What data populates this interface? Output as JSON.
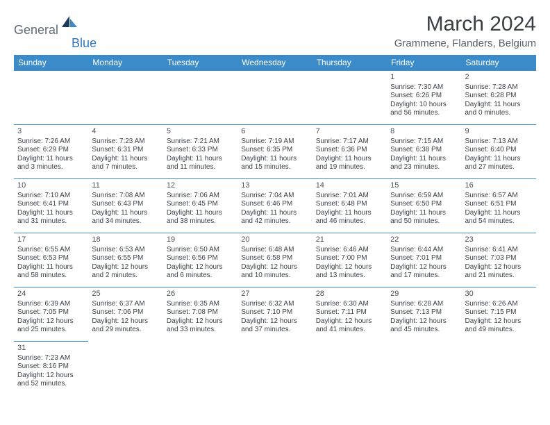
{
  "logo": {
    "text1": "General",
    "text2": "Blue"
  },
  "title": "March 2024",
  "location": "Grammene, Flanders, Belgium",
  "headers": [
    "Sunday",
    "Monday",
    "Tuesday",
    "Wednesday",
    "Thursday",
    "Friday",
    "Saturday"
  ],
  "colors": {
    "header_bg": "#3b8bc8",
    "header_text": "#ffffff",
    "border": "#3b8bc8",
    "logo_gray": "#5f6b76",
    "logo_blue": "#2f77bb",
    "shape_dark": "#1b3a5c",
    "shape_light": "#3b8bc8"
  },
  "weeks": [
    [
      null,
      null,
      null,
      null,
      null,
      {
        "n": "1",
        "sr": "Sunrise: 7:30 AM",
        "ss": "Sunset: 6:26 PM",
        "d1": "Daylight: 10 hours",
        "d2": "and 56 minutes."
      },
      {
        "n": "2",
        "sr": "Sunrise: 7:28 AM",
        "ss": "Sunset: 6:28 PM",
        "d1": "Daylight: 11 hours",
        "d2": "and 0 minutes."
      }
    ],
    [
      {
        "n": "3",
        "sr": "Sunrise: 7:26 AM",
        "ss": "Sunset: 6:29 PM",
        "d1": "Daylight: 11 hours",
        "d2": "and 3 minutes."
      },
      {
        "n": "4",
        "sr": "Sunrise: 7:23 AM",
        "ss": "Sunset: 6:31 PM",
        "d1": "Daylight: 11 hours",
        "d2": "and 7 minutes."
      },
      {
        "n": "5",
        "sr": "Sunrise: 7:21 AM",
        "ss": "Sunset: 6:33 PM",
        "d1": "Daylight: 11 hours",
        "d2": "and 11 minutes."
      },
      {
        "n": "6",
        "sr": "Sunrise: 7:19 AM",
        "ss": "Sunset: 6:35 PM",
        "d1": "Daylight: 11 hours",
        "d2": "and 15 minutes."
      },
      {
        "n": "7",
        "sr": "Sunrise: 7:17 AM",
        "ss": "Sunset: 6:36 PM",
        "d1": "Daylight: 11 hours",
        "d2": "and 19 minutes."
      },
      {
        "n": "8",
        "sr": "Sunrise: 7:15 AM",
        "ss": "Sunset: 6:38 PM",
        "d1": "Daylight: 11 hours",
        "d2": "and 23 minutes."
      },
      {
        "n": "9",
        "sr": "Sunrise: 7:13 AM",
        "ss": "Sunset: 6:40 PM",
        "d1": "Daylight: 11 hours",
        "d2": "and 27 minutes."
      }
    ],
    [
      {
        "n": "10",
        "sr": "Sunrise: 7:10 AM",
        "ss": "Sunset: 6:41 PM",
        "d1": "Daylight: 11 hours",
        "d2": "and 31 minutes."
      },
      {
        "n": "11",
        "sr": "Sunrise: 7:08 AM",
        "ss": "Sunset: 6:43 PM",
        "d1": "Daylight: 11 hours",
        "d2": "and 34 minutes."
      },
      {
        "n": "12",
        "sr": "Sunrise: 7:06 AM",
        "ss": "Sunset: 6:45 PM",
        "d1": "Daylight: 11 hours",
        "d2": "and 38 minutes."
      },
      {
        "n": "13",
        "sr": "Sunrise: 7:04 AM",
        "ss": "Sunset: 6:46 PM",
        "d1": "Daylight: 11 hours",
        "d2": "and 42 minutes."
      },
      {
        "n": "14",
        "sr": "Sunrise: 7:01 AM",
        "ss": "Sunset: 6:48 PM",
        "d1": "Daylight: 11 hours",
        "d2": "and 46 minutes."
      },
      {
        "n": "15",
        "sr": "Sunrise: 6:59 AM",
        "ss": "Sunset: 6:50 PM",
        "d1": "Daylight: 11 hours",
        "d2": "and 50 minutes."
      },
      {
        "n": "16",
        "sr": "Sunrise: 6:57 AM",
        "ss": "Sunset: 6:51 PM",
        "d1": "Daylight: 11 hours",
        "d2": "and 54 minutes."
      }
    ],
    [
      {
        "n": "17",
        "sr": "Sunrise: 6:55 AM",
        "ss": "Sunset: 6:53 PM",
        "d1": "Daylight: 11 hours",
        "d2": "and 58 minutes."
      },
      {
        "n": "18",
        "sr": "Sunrise: 6:53 AM",
        "ss": "Sunset: 6:55 PM",
        "d1": "Daylight: 12 hours",
        "d2": "and 2 minutes."
      },
      {
        "n": "19",
        "sr": "Sunrise: 6:50 AM",
        "ss": "Sunset: 6:56 PM",
        "d1": "Daylight: 12 hours",
        "d2": "and 6 minutes."
      },
      {
        "n": "20",
        "sr": "Sunrise: 6:48 AM",
        "ss": "Sunset: 6:58 PM",
        "d1": "Daylight: 12 hours",
        "d2": "and 10 minutes."
      },
      {
        "n": "21",
        "sr": "Sunrise: 6:46 AM",
        "ss": "Sunset: 7:00 PM",
        "d1": "Daylight: 12 hours",
        "d2": "and 13 minutes."
      },
      {
        "n": "22",
        "sr": "Sunrise: 6:44 AM",
        "ss": "Sunset: 7:01 PM",
        "d1": "Daylight: 12 hours",
        "d2": "and 17 minutes."
      },
      {
        "n": "23",
        "sr": "Sunrise: 6:41 AM",
        "ss": "Sunset: 7:03 PM",
        "d1": "Daylight: 12 hours",
        "d2": "and 21 minutes."
      }
    ],
    [
      {
        "n": "24",
        "sr": "Sunrise: 6:39 AM",
        "ss": "Sunset: 7:05 PM",
        "d1": "Daylight: 12 hours",
        "d2": "and 25 minutes."
      },
      {
        "n": "25",
        "sr": "Sunrise: 6:37 AM",
        "ss": "Sunset: 7:06 PM",
        "d1": "Daylight: 12 hours",
        "d2": "and 29 minutes."
      },
      {
        "n": "26",
        "sr": "Sunrise: 6:35 AM",
        "ss": "Sunset: 7:08 PM",
        "d1": "Daylight: 12 hours",
        "d2": "and 33 minutes."
      },
      {
        "n": "27",
        "sr": "Sunrise: 6:32 AM",
        "ss": "Sunset: 7:10 PM",
        "d1": "Daylight: 12 hours",
        "d2": "and 37 minutes."
      },
      {
        "n": "28",
        "sr": "Sunrise: 6:30 AM",
        "ss": "Sunset: 7:11 PM",
        "d1": "Daylight: 12 hours",
        "d2": "and 41 minutes."
      },
      {
        "n": "29",
        "sr": "Sunrise: 6:28 AM",
        "ss": "Sunset: 7:13 PM",
        "d1": "Daylight: 12 hours",
        "d2": "and 45 minutes."
      },
      {
        "n": "30",
        "sr": "Sunrise: 6:26 AM",
        "ss": "Sunset: 7:15 PM",
        "d1": "Daylight: 12 hours",
        "d2": "and 49 minutes."
      }
    ],
    [
      {
        "n": "31",
        "sr": "Sunrise: 7:23 AM",
        "ss": "Sunset: 8:16 PM",
        "d1": "Daylight: 12 hours",
        "d2": "and 52 minutes."
      },
      null,
      null,
      null,
      null,
      null,
      null
    ]
  ]
}
